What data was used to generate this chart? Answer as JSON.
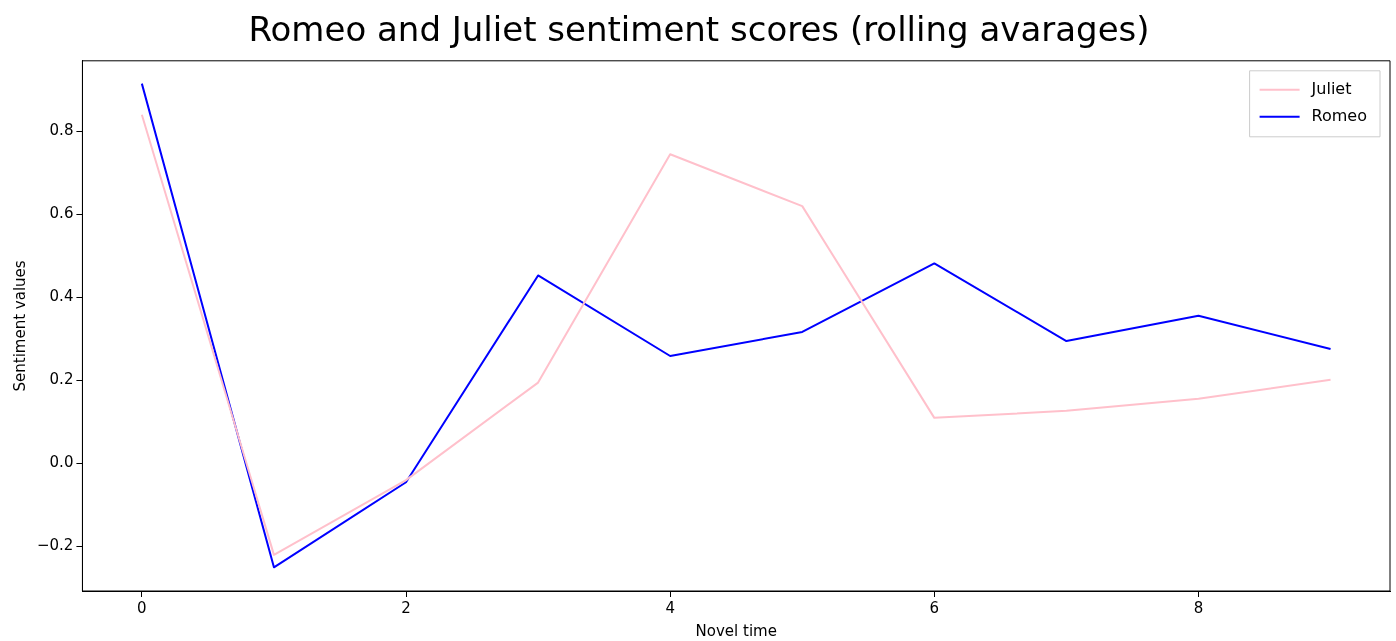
{
  "chart_data": {
    "type": "line",
    "title": "Romeo and Juliet sentiment scores (rolling avarages)",
    "xlabel": "Novel time",
    "ylabel": "Sentiment values",
    "x": [
      0,
      1,
      2,
      3,
      4,
      5,
      6,
      7,
      8,
      9
    ],
    "series": [
      {
        "name": "Juliet",
        "color": "#ffc0cb",
        "values": [
          0.84,
          -0.22,
          -0.04,
          0.195,
          0.745,
          0.62,
          0.11,
          0.127,
          0.156,
          0.202
        ]
      },
      {
        "name": "Romeo",
        "color": "#0000ff",
        "values": [
          0.915,
          -0.25,
          -0.045,
          0.453,
          0.259,
          0.317,
          0.482,
          0.295,
          0.356,
          0.276
        ]
      }
    ],
    "xlim": [
      -0.45,
      9.45
    ],
    "xticks": [
      0,
      2,
      4,
      6,
      8
    ],
    "ylim": [
      -0.307,
      0.97
    ],
    "yticks": [
      {
        "value": -0.2,
        "label": "−0.2"
      },
      {
        "value": 0,
        "label": "0.0"
      },
      {
        "value": 0.2,
        "label": "0.2"
      },
      {
        "value": 0.4,
        "label": "0.4"
      },
      {
        "value": 0.6,
        "label": "0.6"
      },
      {
        "value": 0.8,
        "label": "0.8"
      }
    ],
    "grid": false,
    "legend": "top right",
    "marker": "none",
    "line_style": "solid"
  }
}
